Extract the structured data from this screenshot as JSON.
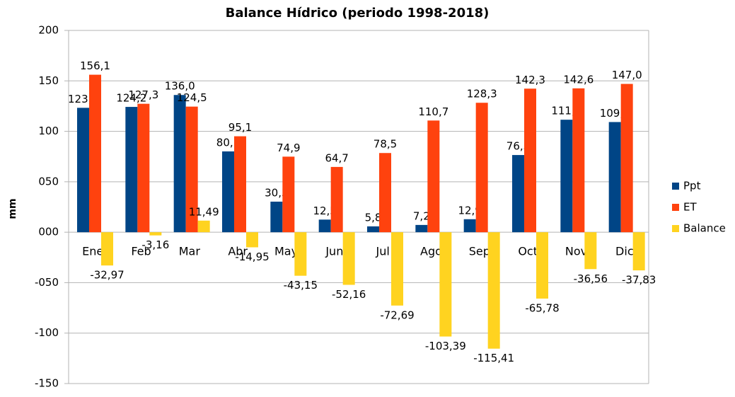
{
  "chart_data": {
    "type": "bar",
    "title": "Balance Hídrico (periodo 1998-2018)",
    "y_label": "mm",
    "categories": [
      "Ene",
      "Feb",
      "Mar",
      "Abr",
      "May",
      "Jun",
      "Jul",
      "Ago",
      "Sep",
      "Oct",
      "Nov",
      "Dic"
    ],
    "series": [
      {
        "name": "Ppt",
        "color": "#004586",
        "values": [
          123.3,
          124.2,
          136.0,
          80.1,
          30.3,
          12.5,
          5.8,
          7.2,
          12.9,
          76.5,
          111.5,
          109.2
        ],
        "value_labels": [
          "123,3",
          "124,2",
          "136,0",
          "80,1",
          "30,3",
          "12,5",
          "5,8",
          "7,2",
          "12,9",
          "76,5",
          "111,5",
          "109,2"
        ]
      },
      {
        "name": "ET",
        "color": "#ff420e",
        "values": [
          156.1,
          127.3,
          124.5,
          95.1,
          74.9,
          64.7,
          78.5,
          110.7,
          128.3,
          142.3,
          142.6,
          147.0
        ],
        "value_labels": [
          "156,1",
          "127,3",
          "124,5",
          "95,1",
          "74,9",
          "64,7",
          "78,5",
          "110,7",
          "128,3",
          "142,3",
          "142,6",
          "147,0"
        ]
      },
      {
        "name": "Balance",
        "color": "#ffd320",
        "values": [
          -32.97,
          -3.16,
          11.49,
          -14.95,
          -43.15,
          -52.16,
          -72.69,
          -103.39,
          -115.41,
          -65.78,
          -36.56,
          -37.83
        ],
        "value_labels": [
          "-32,97",
          "-3,16",
          "11,49",
          "-14,95",
          "-43,15",
          "-52,16",
          "-72,69",
          "-103,39",
          "-115,41",
          "-65,78",
          "-36,56",
          "-37,83"
        ]
      }
    ],
    "ylim": [
      -150,
      200
    ],
    "yticks": [
      -150,
      -100,
      {
        "value": -50,
        "label": "-050"
      },
      {
        "value": 0,
        "label": "000"
      },
      {
        "value": 50,
        "label": "050"
      },
      100,
      150,
      200
    ],
    "grid": true,
    "legend": "right"
  }
}
